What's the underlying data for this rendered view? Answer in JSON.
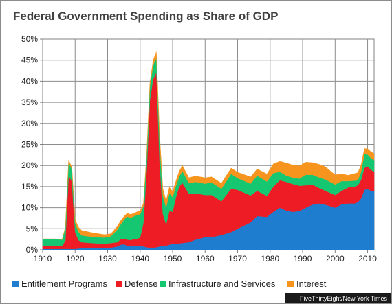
{
  "chart_data": {
    "type": "area",
    "stacked": true,
    "title": "Federal Government Spending as Share of GDP",
    "xlabel": "",
    "ylabel": "",
    "xlim": [
      1910,
      2012
    ],
    "ylim": [
      0,
      50
    ],
    "x_ticks": [
      1910,
      1920,
      1930,
      1940,
      1950,
      1960,
      1970,
      1980,
      1990,
      2000,
      2010
    ],
    "y_ticks": [
      "0%",
      "5%",
      "10%",
      "15%",
      "20%",
      "25%",
      "30%",
      "35%",
      "40%",
      "45%",
      "50%"
    ],
    "grid": true,
    "legend_position": "bottom",
    "years": [
      1910,
      1914,
      1916,
      1917,
      1918,
      1919,
      1920,
      1921,
      1922,
      1925,
      1929,
      1931,
      1933,
      1934,
      1935,
      1936,
      1937,
      1938,
      1939,
      1940,
      1941,
      1942,
      1943,
      1944,
      1945,
      1946,
      1947,
      1948,
      1949,
      1950,
      1951,
      1952,
      1953,
      1955,
      1957,
      1960,
      1962,
      1965,
      1968,
      1970,
      1974,
      1976,
      1979,
      1981,
      1983,
      1985,
      1987,
      1989,
      1991,
      1993,
      1995,
      1997,
      2000,
      2002,
      2004,
      2006,
      2007,
      2008,
      2009,
      2010,
      2011,
      2012
    ],
    "series": [
      {
        "name": "Entitlement Programs",
        "color": "#1f7dd0",
        "values": [
          0.2,
          0.2,
          0.2,
          0.2,
          0.2,
          0.2,
          0.2,
          0.3,
          0.4,
          0.4,
          0.4,
          0.5,
          0.8,
          1.2,
          1.3,
          1.0,
          1.0,
          1.0,
          1.0,
          0.9,
          0.8,
          0.6,
          0.5,
          0.5,
          0.6,
          0.8,
          1.0,
          1.0,
          1.2,
          1.5,
          1.4,
          1.5,
          1.6,
          1.8,
          2.4,
          3.0,
          3.0,
          3.5,
          4.2,
          5.0,
          6.5,
          8.0,
          7.8,
          9.0,
          10.0,
          9.3,
          9.0,
          9.2,
          10.0,
          10.7,
          11.0,
          10.7,
          10.0,
          10.8,
          11.0,
          11.0,
          11.3,
          12.2,
          14.2,
          14.5,
          14.0,
          14.0
        ]
      },
      {
        "name": "Defense",
        "color": "#ee1c24",
        "values": [
          0.8,
          0.8,
          0.7,
          2.0,
          17.5,
          16.0,
          4.0,
          2.0,
          1.4,
          1.2,
          1.0,
          1.1,
          1.0,
          1.3,
          1.3,
          1.4,
          1.3,
          1.5,
          1.6,
          2.0,
          5.5,
          18.0,
          35.0,
          40.0,
          41.5,
          20.0,
          7.5,
          5.0,
          8.0,
          7.5,
          11.0,
          13.5,
          14.3,
          11.5,
          11.0,
          10.0,
          10.0,
          8.0,
          10.3,
          9.2,
          6.4,
          6.0,
          5.0,
          6.0,
          6.5,
          6.8,
          6.6,
          6.0,
          5.3,
          4.8,
          3.7,
          3.3,
          3.0,
          3.2,
          3.8,
          4.0,
          4.0,
          4.4,
          5.2,
          5.3,
          5.0,
          4.5
        ]
      },
      {
        "name": "Infrastructure and Services",
        "color": "#16c772",
        "values": [
          1.5,
          1.5,
          1.5,
          3.0,
          3.3,
          2.8,
          2.2,
          2.0,
          1.6,
          1.5,
          1.5,
          1.6,
          3.0,
          3.5,
          4.5,
          5.5,
          5.3,
          5.4,
          5.7,
          5.5,
          4.0,
          3.5,
          3.3,
          3.3,
          3.4,
          4.8,
          4.3,
          4.0,
          4.2,
          3.5,
          2.7,
          2.3,
          2.8,
          2.5,
          2.7,
          2.7,
          3.0,
          3.0,
          3.5,
          2.8,
          2.8,
          3.6,
          3.4,
          3.2,
          2.0,
          1.5,
          1.5,
          1.7,
          2.5,
          2.3,
          2.5,
          2.7,
          2.5,
          2.3,
          1.5,
          1.4,
          1.2,
          1.9,
          3.3,
          2.8,
          2.8,
          2.8
        ]
      },
      {
        "name": "Interest",
        "color": "#f7941d",
        "values": [
          0.1,
          0.1,
          0.1,
          0.2,
          0.3,
          0.6,
          0.8,
          1.1,
          1.2,
          1.0,
          0.7,
          0.6,
          0.8,
          0.9,
          0.8,
          0.8,
          0.8,
          0.7,
          0.7,
          0.8,
          0.7,
          0.6,
          0.8,
          1.2,
          1.5,
          1.8,
          1.8,
          1.6,
          1.5,
          1.3,
          1.2,
          1.3,
          1.3,
          1.3,
          1.4,
          1.4,
          1.3,
          1.3,
          1.4,
          1.4,
          1.6,
          1.6,
          1.8,
          2.2,
          2.5,
          3.0,
          3.0,
          3.0,
          3.0,
          2.9,
          3.1,
          3.0,
          2.3,
          1.7,
          1.4,
          1.7,
          1.8,
          1.7,
          1.3,
          1.4,
          1.5,
          1.5
        ]
      }
    ]
  },
  "credit": "FiveThirtyEight/New York Times"
}
